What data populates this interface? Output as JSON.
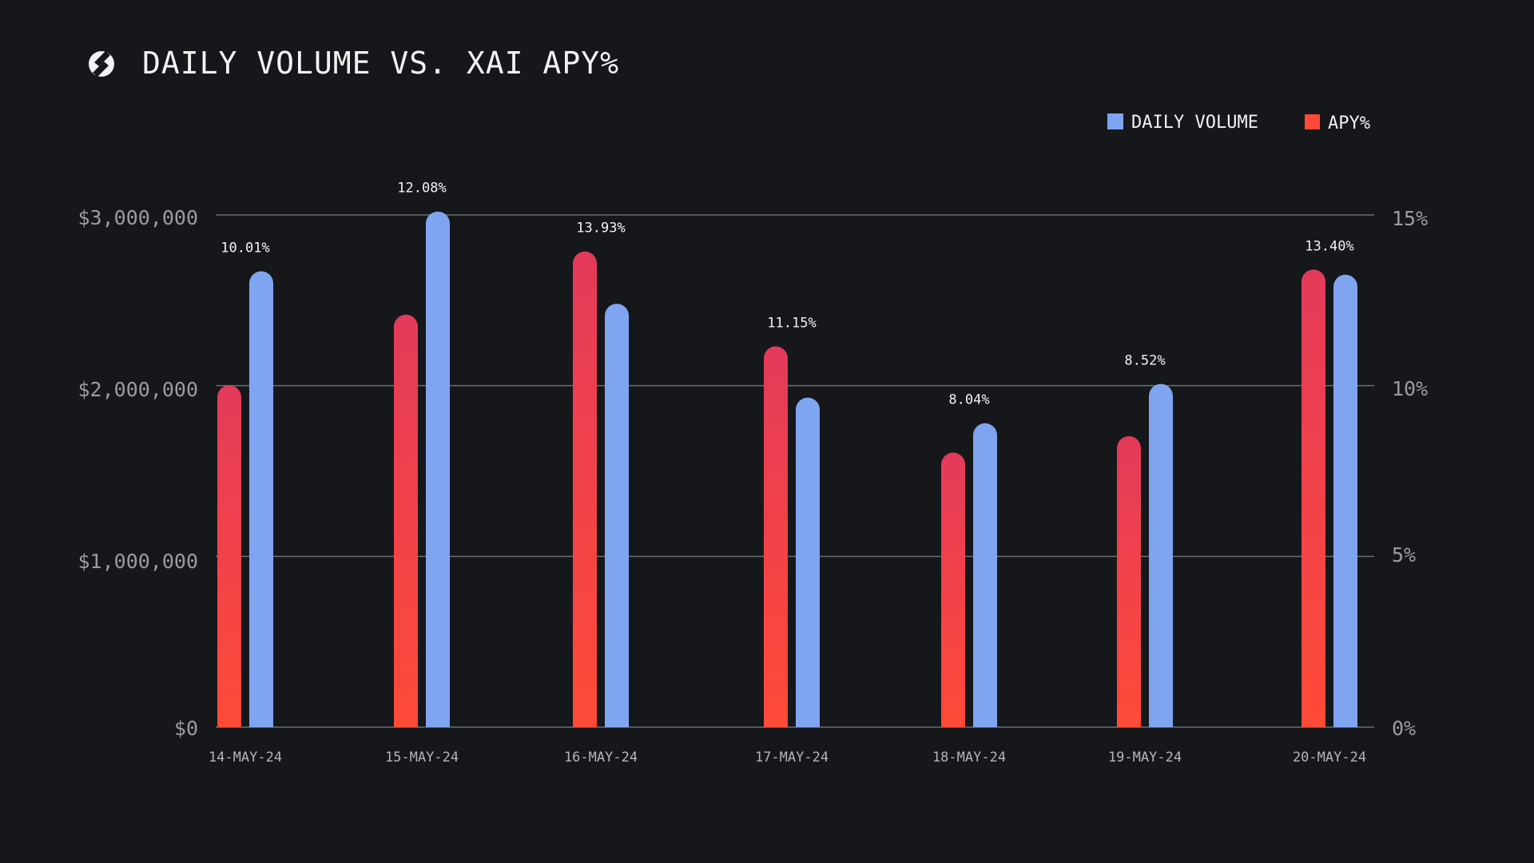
{
  "header": {
    "title": "DAILY VOLUME VS. XAI APY%",
    "logo_icon": "stakeway-logo-icon"
  },
  "colors": {
    "background": "#16171b",
    "volume": "#7fa5f0",
    "apy_top": "#e43a5a",
    "apy_bottom": "#ff4a38",
    "grid": "#6b6d73",
    "axis_text": "#9a9ca3"
  },
  "chart_data": {
    "type": "bar",
    "title": "DAILY VOLUME VS. XAI APY%",
    "categories": [
      "14-MAY-24",
      "15-MAY-24",
      "16-MAY-24",
      "17-MAY-24",
      "18-MAY-24",
      "19-MAY-24",
      "20-MAY-24"
    ],
    "series": [
      {
        "name": "DAILY VOLUME",
        "axis": "left",
        "values": [
          2670000,
          3020000,
          2480000,
          1930000,
          1780000,
          2010000,
          2650000
        ]
      },
      {
        "name": "APY%",
        "axis": "right",
        "values": [
          10.01,
          12.08,
          13.93,
          11.15,
          8.04,
          8.52,
          13.4
        ],
        "data_labels": [
          "10.01%",
          "12.08%",
          "13.93%",
          "11.15%",
          "8.04%",
          "8.52%",
          "13.40%"
        ]
      }
    ],
    "y_left": {
      "ylim": [
        0,
        3000000
      ],
      "ticks": [
        0,
        1000000,
        2000000,
        3000000
      ],
      "tick_labels": [
        "$0",
        "$1,000,000",
        "$2,000,000",
        "$3,000,000"
      ]
    },
    "y_right": {
      "ylim": [
        0,
        15
      ],
      "ticks": [
        0,
        5,
        10,
        15
      ],
      "tick_labels": [
        "0%",
        "5%",
        "10%",
        "15%"
      ]
    },
    "legend": {
      "position": "top-right",
      "entries": [
        "DAILY VOLUME",
        "APY%"
      ]
    },
    "grid": true,
    "xlabel": "",
    "ylabel": ""
  }
}
